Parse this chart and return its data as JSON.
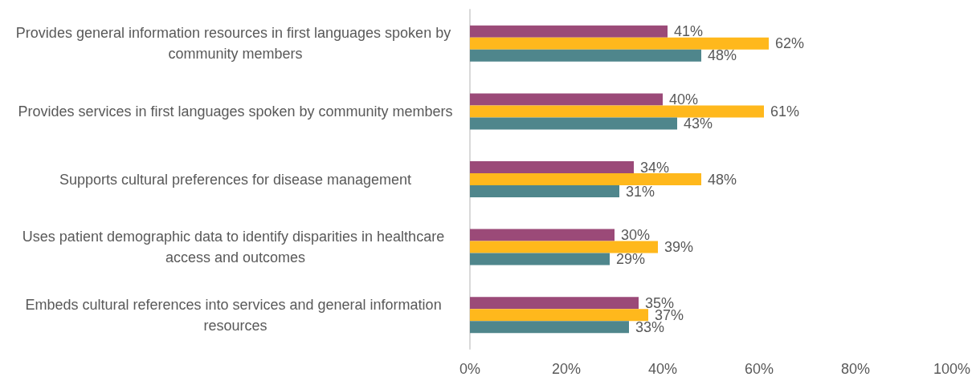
{
  "chart_data": {
    "type": "bar",
    "orientation": "horizontal",
    "categories": [
      "Provides general information resources in first languages spoken by community members",
      "Provides services in first languages spoken by community members",
      "Supports cultural preferences for disease management",
      "Uses patient demographic data to identify disparities in healthcare access and outcomes",
      "Embeds cultural references into services and general information resources"
    ],
    "series": [
      {
        "color": "#9b4a78",
        "values": [
          41,
          40,
          34,
          30,
          35
        ],
        "value_labels": [
          "41%",
          "40%",
          "34%",
          "30%",
          "35%"
        ]
      },
      {
        "color": "#ffb81c",
        "values": [
          62,
          61,
          48,
          39,
          37
        ],
        "value_labels": [
          "62%",
          "61%",
          "48%",
          "39%",
          "37%"
        ]
      },
      {
        "color": "#4f868c",
        "values": [
          48,
          43,
          31,
          29,
          33
        ],
        "value_labels": [
          "48%",
          "43%",
          "31%",
          "29%",
          "33%"
        ]
      }
    ],
    "xlim": [
      0,
      100
    ],
    "xticks": [
      {
        "value": 0,
        "label": "0%"
      },
      {
        "value": 20,
        "label": "20%"
      },
      {
        "value": 40,
        "label": "40%"
      },
      {
        "value": 60,
        "label": "60%"
      },
      {
        "value": 80,
        "label": "80%"
      },
      {
        "value": 100,
        "label": "100%"
      }
    ],
    "grid": false
  }
}
